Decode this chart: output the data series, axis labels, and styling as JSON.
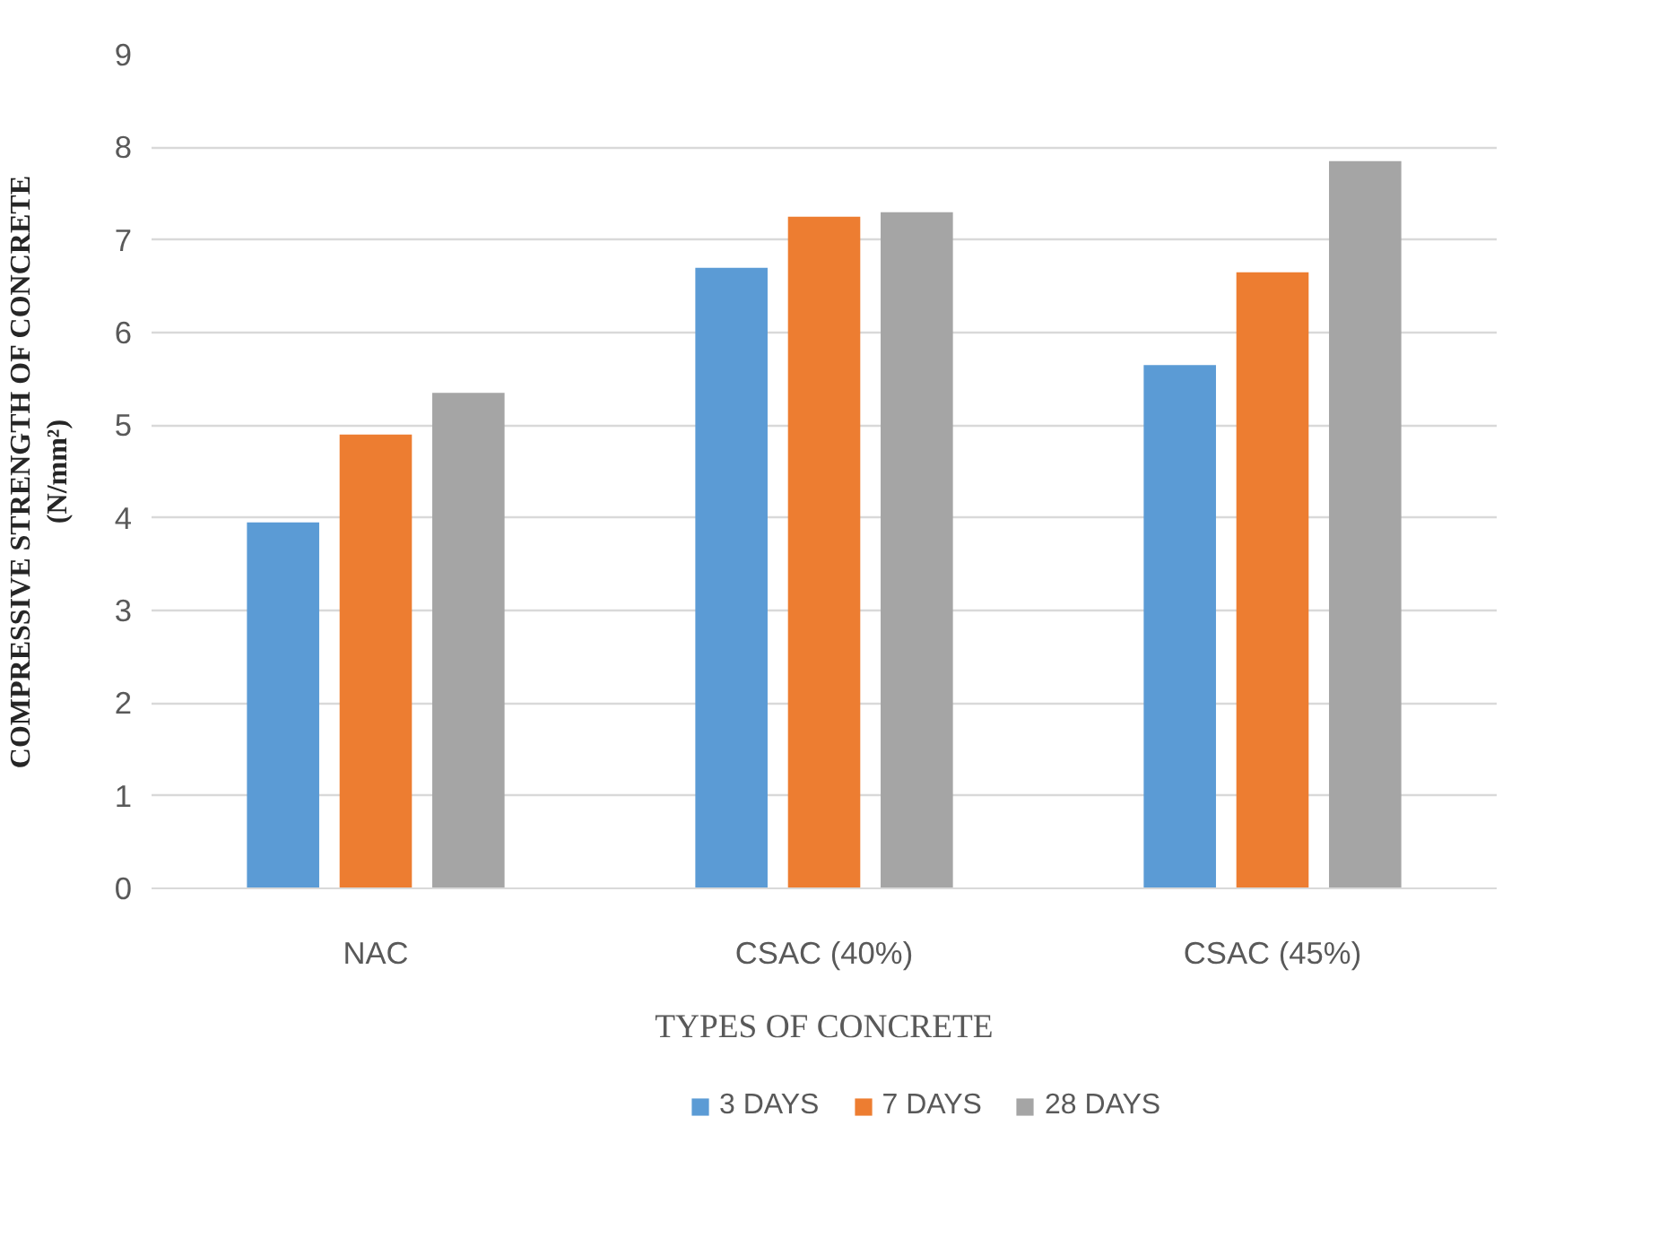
{
  "chart_data": {
    "type": "bar",
    "xlabel": "TYPES OF CONCRETE",
    "ylabel": "COMPRESSIVE STRENGTH OF CONCRETE\n(N/mm²)",
    "categories": [
      "NAC",
      "CSAC (40%)",
      "CSAC (45%)"
    ],
    "series": [
      {
        "name": "3 DAYS",
        "color": "#5b9bd5",
        "values": [
          3.95,
          6.7,
          5.65
        ]
      },
      {
        "name": "7 DAYS",
        "color": "#ed7d31",
        "values": [
          4.9,
          7.25,
          6.65
        ]
      },
      {
        "name": "28 DAYS",
        "color": "#a5a5a5",
        "values": [
          5.35,
          7.3,
          7.85
        ]
      }
    ],
    "ylim": [
      0,
      9
    ],
    "yticks": [
      0,
      1,
      2,
      3,
      4,
      5,
      6,
      7,
      8,
      9
    ],
    "grid": "y",
    "legend": "bottom"
  }
}
